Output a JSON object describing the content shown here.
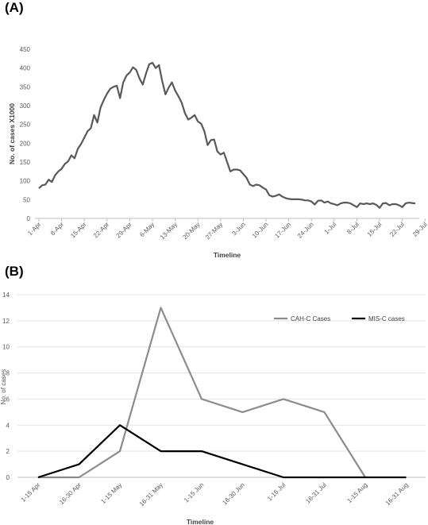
{
  "panel_labels": {
    "a": "(A)",
    "b": "(B)"
  },
  "chart_data": [
    {
      "type": "line",
      "title": "",
      "xlabel": "Timeline",
      "ylabel": "No. of cases  X1000",
      "ylim": [
        0,
        450
      ],
      "yticks": [
        0,
        50,
        100,
        150,
        200,
        250,
        300,
        350,
        400,
        450
      ],
      "grid": false,
      "x_tick_labels": [
        "1-Apr",
        "8-Apr",
        "15-Apr",
        "22-Apr",
        "29-Apr",
        "6-May",
        "13-May",
        "20-May",
        "27-May",
        "3-Jun",
        "10-Jun",
        "17-Jun",
        "24-Jun",
        "1-Jul",
        "8-Jul",
        "15-Jul",
        "22-Jul",
        "29-Jul"
      ],
      "series": [
        {
          "color": "#595959",
          "values": [
            80,
            88,
            90,
            103,
            97,
            115,
            125,
            132,
            145,
            152,
            168,
            160,
            185,
            198,
            215,
            232,
            240,
            275,
            255,
            295,
            315,
            332,
            345,
            350,
            353,
            320,
            362,
            380,
            388,
            402,
            395,
            372,
            356,
            385,
            410,
            414,
            400,
            408,
            365,
            330,
            348,
            362,
            340,
            325,
            308,
            280,
            263,
            268,
            275,
            258,
            252,
            232,
            195,
            208,
            210,
            178,
            170,
            175,
            150,
            125,
            130,
            130,
            128,
            118,
            108,
            90,
            86,
            90,
            88,
            82,
            77,
            62,
            58,
            60,
            64,
            58,
            54,
            52,
            51,
            51,
            51,
            50,
            48,
            48,
            45,
            37,
            47,
            48,
            42,
            45,
            40,
            38,
            35,
            40,
            42,
            42,
            40,
            35,
            30,
            40,
            38,
            40,
            38,
            40,
            36,
            28,
            40,
            41,
            35,
            38,
            38,
            35,
            30,
            40,
            42,
            41,
            40
          ]
        }
      ]
    },
    {
      "type": "line",
      "title": "",
      "xlabel": "Timeline",
      "ylabel": "No. of cases",
      "ylim": [
        0,
        14
      ],
      "yticks": [
        0,
        2,
        4,
        6,
        8,
        10,
        12,
        14
      ],
      "grid": true,
      "legend_position": "top-right",
      "categories": [
        "1-15 Apr",
        "16-30 Apr",
        "1-15 May",
        "16-31 May",
        "1-15 Jun",
        "16-30 Jun",
        "1-15 Jul",
        "16-31 Jul",
        "1-15 Aug",
        "16-31 Aug"
      ],
      "series": [
        {
          "name": "CAH-C Cases",
          "color": "#8c8c8c",
          "values": [
            0,
            0,
            2,
            13,
            6,
            5,
            6,
            5,
            0,
            null
          ]
        },
        {
          "name": "MIS-C cases",
          "color": "#000000",
          "values": [
            0,
            1,
            4,
            2,
            2,
            1,
            0,
            0,
            0,
            0
          ]
        }
      ]
    }
  ]
}
